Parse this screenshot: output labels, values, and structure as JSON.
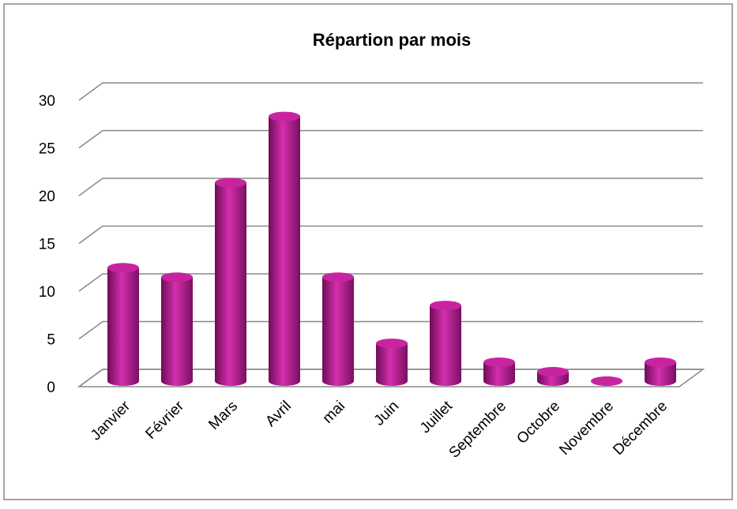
{
  "chart_data": {
    "type": "bar3d",
    "title": "Répartion par mois",
    "categories": [
      "Janvier",
      "Février",
      "Mars",
      "Avril",
      "mai",
      "Juin",
      "Juillet",
      "Septembre",
      "Octobre",
      "Novembre",
      "Décembre"
    ],
    "values": [
      12,
      11,
      21,
      28,
      11,
      4,
      8,
      2,
      1,
      0,
      2
    ],
    "color": "#b5178f",
    "ylim": [
      0,
      30
    ],
    "yticks": [
      0,
      5,
      10,
      15,
      20,
      25,
      30
    ],
    "grid": true
  }
}
